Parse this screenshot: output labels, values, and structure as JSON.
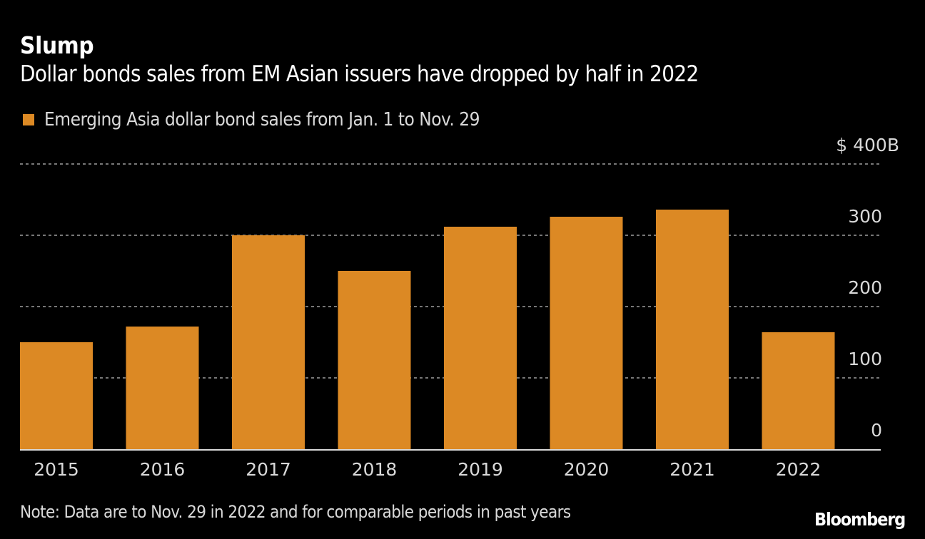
{
  "chart_data": {
    "type": "bar",
    "title": "Slump",
    "subtitle": "Dollar bonds sales from EM Asian issuers have dropped by half in 2022",
    "legend": [
      {
        "label": "Emerging Asia dollar bond sales from Jan. 1 to Nov. 29",
        "color": "#dc8924"
      }
    ],
    "legend_position": "top-left",
    "categories": [
      "2015",
      "2016",
      "2017",
      "2018",
      "2019",
      "2020",
      "2021",
      "2022"
    ],
    "series": [
      {
        "name": "Emerging Asia dollar bond sales from Jan. 1 to Nov. 29",
        "values": [
          150,
          172,
          300,
          250,
          312,
          326,
          336,
          164
        ]
      }
    ],
    "xlabel": "",
    "ylabel": "",
    "ylim": [
      0,
      400
    ],
    "yticks": [
      0,
      100,
      200,
      300,
      400
    ],
    "ytick_labels": [
      "0",
      "100",
      "200",
      "300",
      "$ 400B"
    ],
    "y_axis_side": "right",
    "grid": true,
    "note": "Note: Data are to Nov. 29 in 2022 and for comparable periods in past years",
    "source_brand": "Bloomberg"
  },
  "colors": {
    "background": "#000000",
    "bar": "#dc8924",
    "grid": "#777777",
    "baseline": "#d9d9d9",
    "text": "#d9d9d9"
  }
}
